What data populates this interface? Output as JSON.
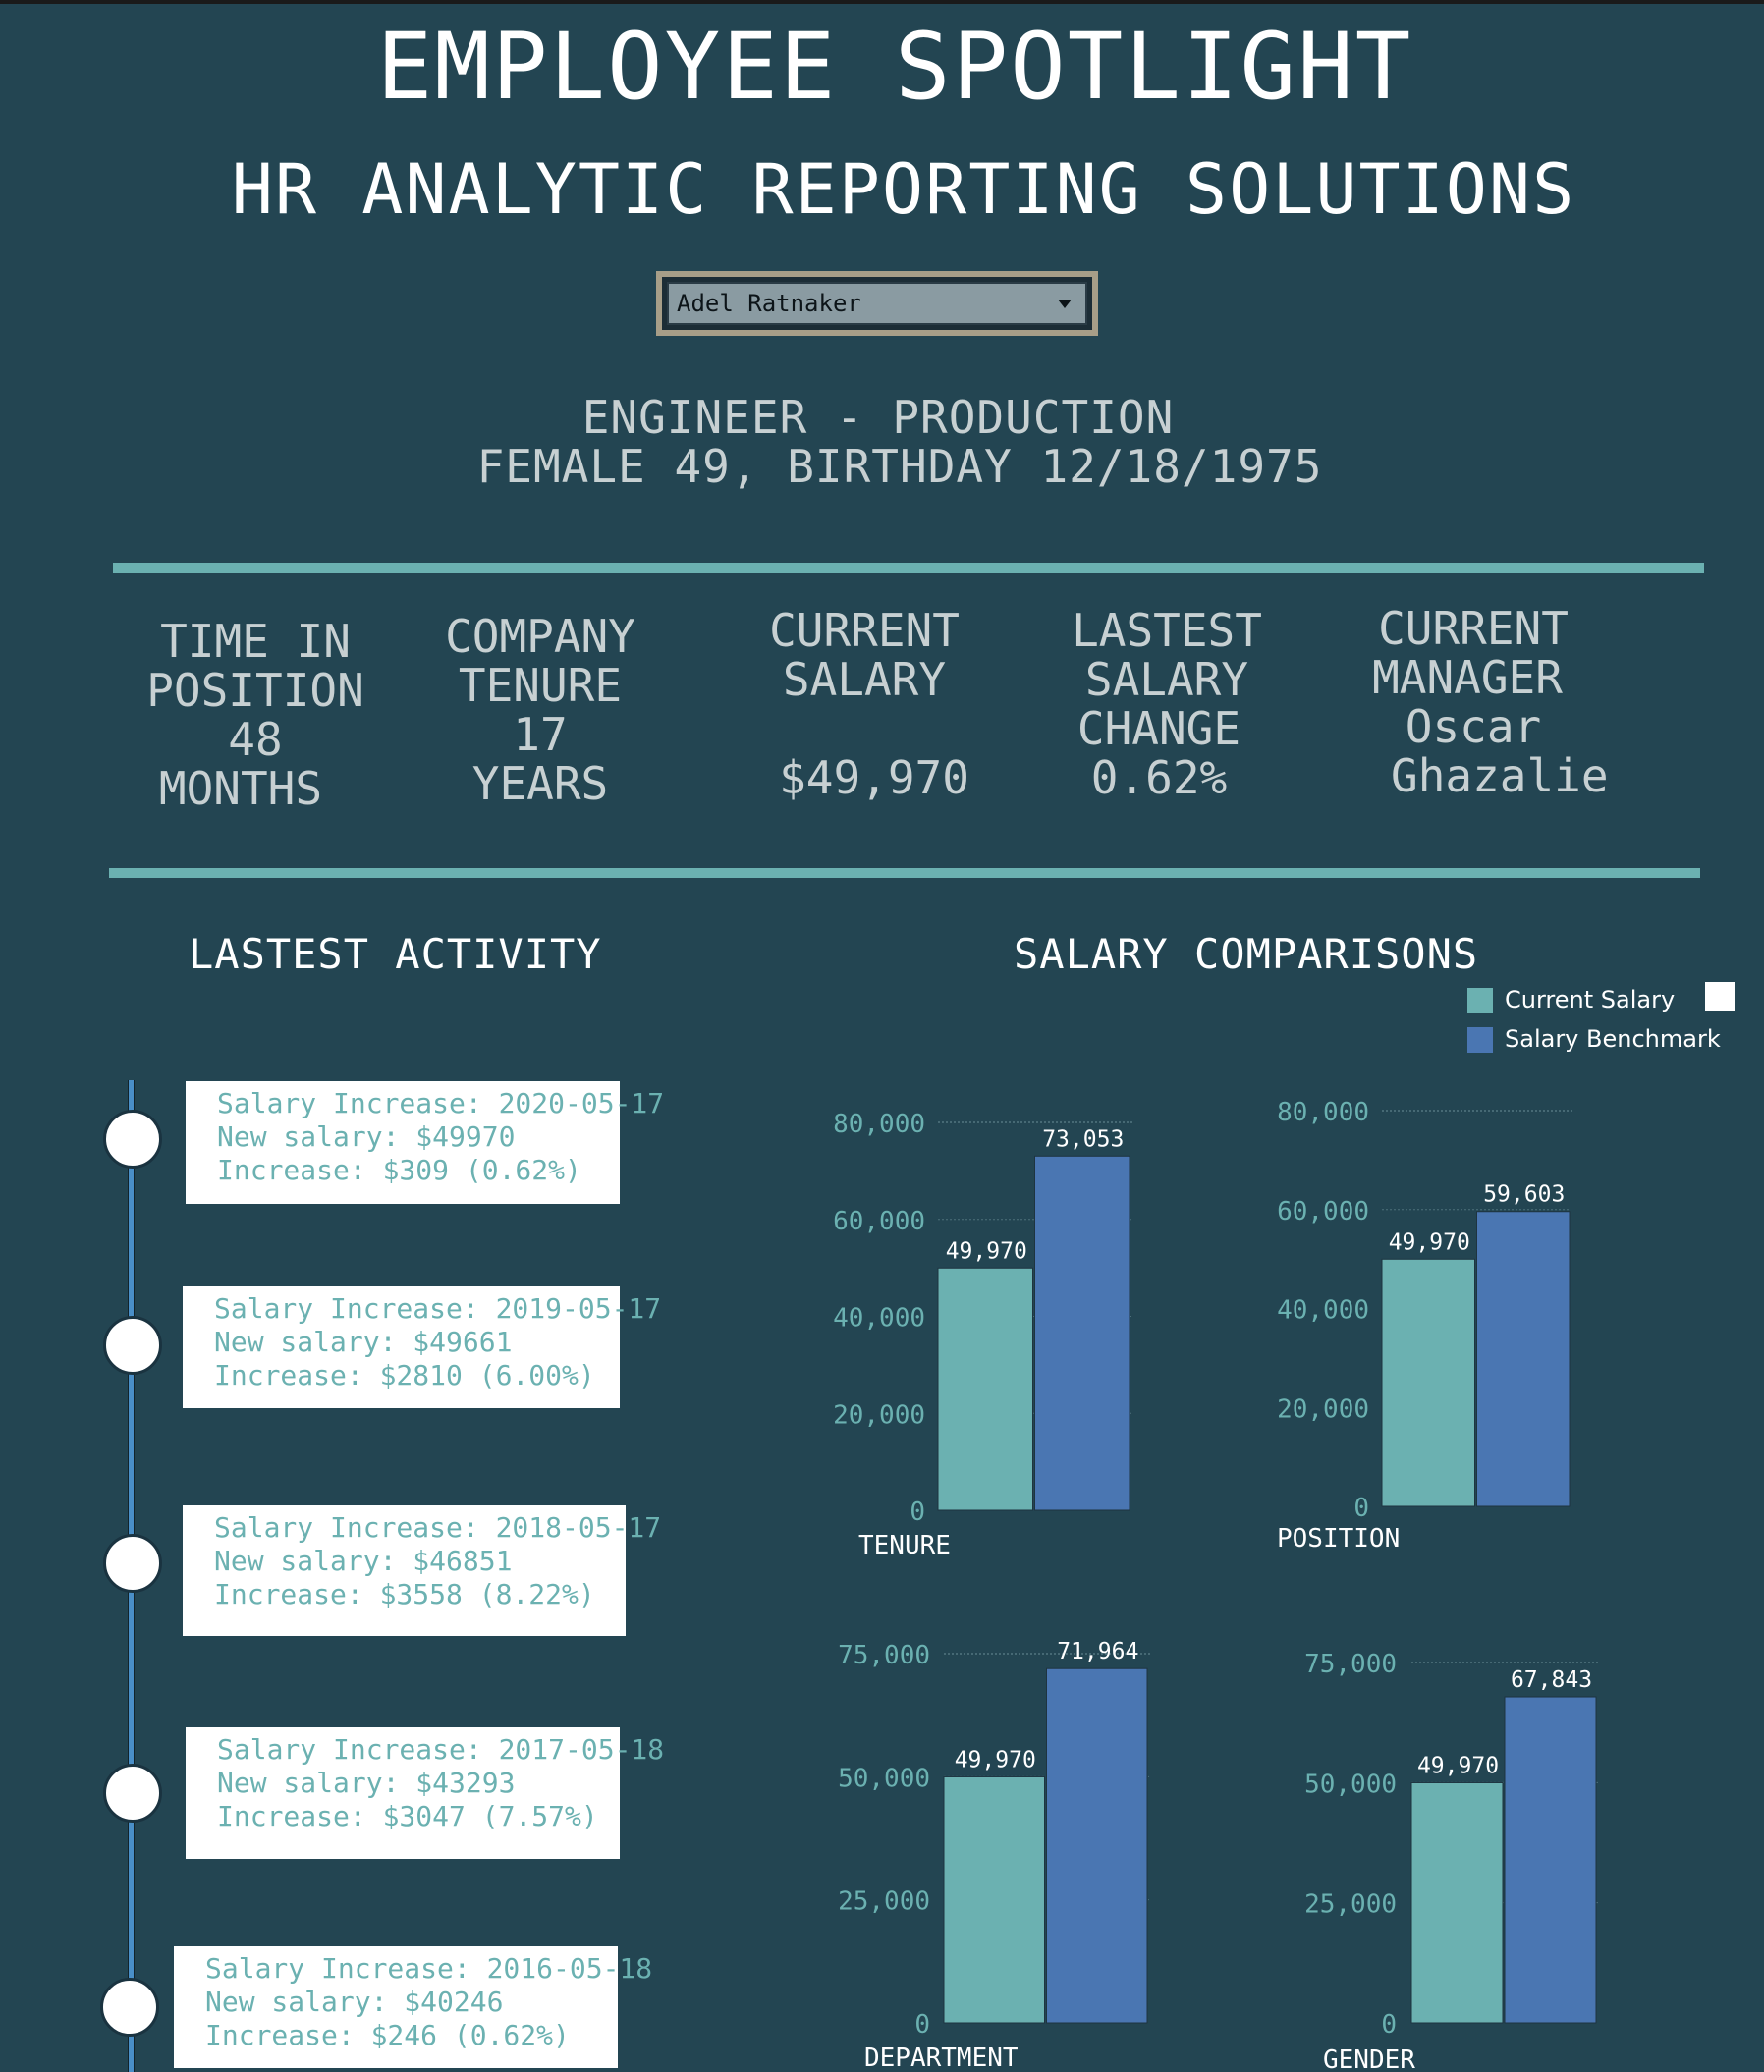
{
  "header": {
    "title": "EMPLOYEE SPOTLIGHT",
    "subtitle": "HR ANALYTIC REPORTING SOLUTIONS",
    "employee_select_value": "Adel Ratnaker"
  },
  "profile": {
    "job": "ENGINEER - PRODUCTION",
    "demographics": "FEMALE 49, BIRTHDAY 12/18/1975"
  },
  "kpis": [
    {
      "lines": [
        "TIME IN",
        "POSITION",
        "48",
        "MONTHS"
      ]
    },
    {
      "lines": [
        "COMPANY",
        "TENURE",
        "17",
        "YEARS"
      ]
    },
    {
      "lines": [
        "CURRENT",
        "SALARY",
        "",
        "$49,970"
      ]
    },
    {
      "lines": [
        "LASTEST",
        "SALARY",
        "CHANGE",
        "0.62%"
      ]
    },
    {
      "lines": [
        "CURRENT",
        "MANAGER",
        "Oscar",
        "Ghazalie"
      ]
    }
  ],
  "activity": {
    "title": "LASTEST ACTIVITY",
    "items": [
      {
        "line1": "Salary Increase: 2020-05-17",
        "line2": "New salary: $49970",
        "line3": "Increase: $309 (0.62%)"
      },
      {
        "line1": "Salary Increase: 2019-05-17",
        "line2": "New salary: $49661",
        "line3": "Increase: $2810 (6.00%)"
      },
      {
        "line1": "Salary Increase: 2018-05-17",
        "line2": "New salary: $46851",
        "line3": "Increase: $3558 (8.22%)"
      },
      {
        "line1": "Salary Increase: 2017-05-18",
        "line2": "New salary: $43293",
        "line3": "Increase: $3047 (7.57%)"
      },
      {
        "line1": "Salary Increase: 2016-05-18",
        "line2": "New salary: $40246",
        "line3": "Increase: $246 (0.62%)"
      }
    ]
  },
  "comparisons": {
    "title": "SALARY COMPARISONS",
    "legend": [
      {
        "label": "Current Salary",
        "color": "#6bb1b1"
      },
      {
        "label": "Salary Benchmark",
        "color": "#4a76b2"
      }
    ]
  },
  "chart_data": [
    {
      "type": "bar",
      "category_label": "TENURE",
      "categories": [
        "Current Salary",
        "Salary Benchmark"
      ],
      "values": [
        49970,
        73053
      ],
      "value_labels": [
        "49,970",
        "73,053"
      ],
      "yticks": [
        0,
        20000,
        40000,
        60000,
        80000
      ],
      "ytick_labels": [
        "0",
        "20,000",
        "40,000",
        "60,000",
        "80,000"
      ],
      "ylim": [
        0,
        80000
      ],
      "colors": [
        "#6bb1b1",
        "#4a76b2"
      ],
      "grid": true
    },
    {
      "type": "bar",
      "category_label": "POSITION",
      "categories": [
        "Current Salary",
        "Salary Benchmark"
      ],
      "values": [
        49970,
        59603
      ],
      "value_labels": [
        "49,970",
        "59,603"
      ],
      "yticks": [
        0,
        20000,
        40000,
        60000,
        80000
      ],
      "ytick_labels": [
        "0",
        "20,000",
        "40,000",
        "60,000",
        "80,000"
      ],
      "ylim": [
        0,
        80000
      ],
      "colors": [
        "#6bb1b1",
        "#4a76b2"
      ],
      "grid": true
    },
    {
      "type": "bar",
      "category_label": "DEPARTMENT",
      "categories": [
        "Current Salary",
        "Salary Benchmark"
      ],
      "values": [
        49970,
        71964
      ],
      "value_labels": [
        "49,970",
        "71,964"
      ],
      "yticks": [
        0,
        25000,
        50000,
        75000
      ],
      "ytick_labels": [
        "0",
        "25,000",
        "50,000",
        "75,000"
      ],
      "ylim": [
        0,
        75000
      ],
      "colors": [
        "#6bb1b1",
        "#4a76b2"
      ],
      "grid": true
    },
    {
      "type": "bar",
      "category_label": "GENDER",
      "categories": [
        "Current Salary",
        "Salary Benchmark"
      ],
      "values": [
        49970,
        67843
      ],
      "value_labels": [
        "49,970",
        "67,843"
      ],
      "yticks": [
        0,
        25000,
        50000,
        75000
      ],
      "ytick_labels": [
        "0",
        "25,000",
        "50,000",
        "75,000"
      ],
      "ylim": [
        0,
        75000
      ],
      "colors": [
        "#6bb1b1",
        "#4a76b2"
      ],
      "grid": true
    }
  ]
}
